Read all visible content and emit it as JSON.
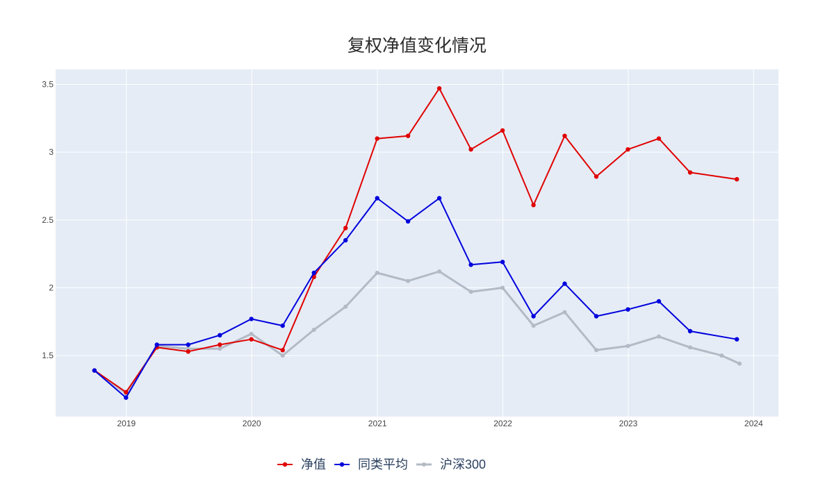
{
  "chart_data": {
    "type": "line",
    "title": "复权净值变化情况",
    "xlabel": "",
    "ylabel": "",
    "xlim": [
      "2018-06-09",
      "2024-03-13"
    ],
    "ylim": [
      1.05,
      3.61
    ],
    "x_ticks": [
      "2019",
      "2020",
      "2021",
      "2022",
      "2023",
      "2024"
    ],
    "y_ticks": [
      "1.5",
      "2",
      "2.5",
      "3",
      "3.5"
    ],
    "grid": true,
    "legend_position": "bottom-center",
    "legend_orientation": "horizontal",
    "series": [
      {
        "name": "净值",
        "color": "#e00000",
        "mode": "lines+markers",
        "x": [
          "2018-09-30",
          "2018-12-31",
          "2019-03-31",
          "2019-06-30",
          "2019-09-30",
          "2019-12-31",
          "2020-03-31",
          "2020-06-30",
          "2020-09-30",
          "2020-12-31",
          "2021-03-31",
          "2021-06-30",
          "2021-09-30",
          "2021-12-31",
          "2022-03-31",
          "2022-06-30",
          "2022-09-30",
          "2022-12-31",
          "2023-03-31",
          "2023-06-30",
          "2023-11-13"
        ],
        "y": [
          1.39,
          1.23,
          1.56,
          1.53,
          1.58,
          1.62,
          1.54,
          2.08,
          2.44,
          3.1,
          3.12,
          3.47,
          3.02,
          3.16,
          2.61,
          3.12,
          2.82,
          3.02,
          3.1,
          2.85,
          2.8
        ]
      },
      {
        "name": "同类平均",
        "color": "#0000dd",
        "mode": "lines+markers",
        "x": [
          "2018-09-30",
          "2018-12-31",
          "2019-03-31",
          "2019-06-30",
          "2019-09-30",
          "2019-12-31",
          "2020-03-31",
          "2020-06-30",
          "2020-09-30",
          "2020-12-31",
          "2021-03-31",
          "2021-06-30",
          "2021-09-30",
          "2021-12-31",
          "2022-03-31",
          "2022-06-30",
          "2022-09-30",
          "2022-12-31",
          "2023-03-31",
          "2023-06-30",
          "2023-11-13"
        ],
        "y": [
          1.39,
          1.19,
          1.58,
          1.58,
          1.65,
          1.77,
          1.72,
          2.11,
          2.35,
          2.66,
          2.49,
          2.66,
          2.17,
          2.19,
          1.79,
          2.03,
          1.79,
          1.84,
          1.9,
          1.68,
          1.62
        ]
      },
      {
        "name": "沪深300",
        "color": "#b3bac5",
        "mode": "lines+markers",
        "x": [
          "2018-09-30",
          "2018-12-31",
          "2019-03-31",
          "2019-06-30",
          "2019-09-30",
          "2019-12-31",
          "2020-03-31",
          "2020-06-30",
          "2020-09-30",
          "2020-12-31",
          "2021-03-31",
          "2021-06-30",
          "2021-09-30",
          "2021-12-31",
          "2022-03-31",
          "2022-06-30",
          "2022-09-30",
          "2022-12-31",
          "2023-03-31",
          "2023-06-30",
          "2023-09-30",
          "2023-11-21"
        ],
        "y": [
          1.39,
          1.22,
          1.57,
          1.55,
          1.55,
          1.66,
          1.5,
          1.69,
          1.86,
          2.11,
          2.05,
          2.12,
          1.97,
          2.0,
          1.72,
          1.82,
          1.54,
          1.57,
          1.64,
          1.56,
          1.5,
          1.44
        ]
      }
    ]
  }
}
